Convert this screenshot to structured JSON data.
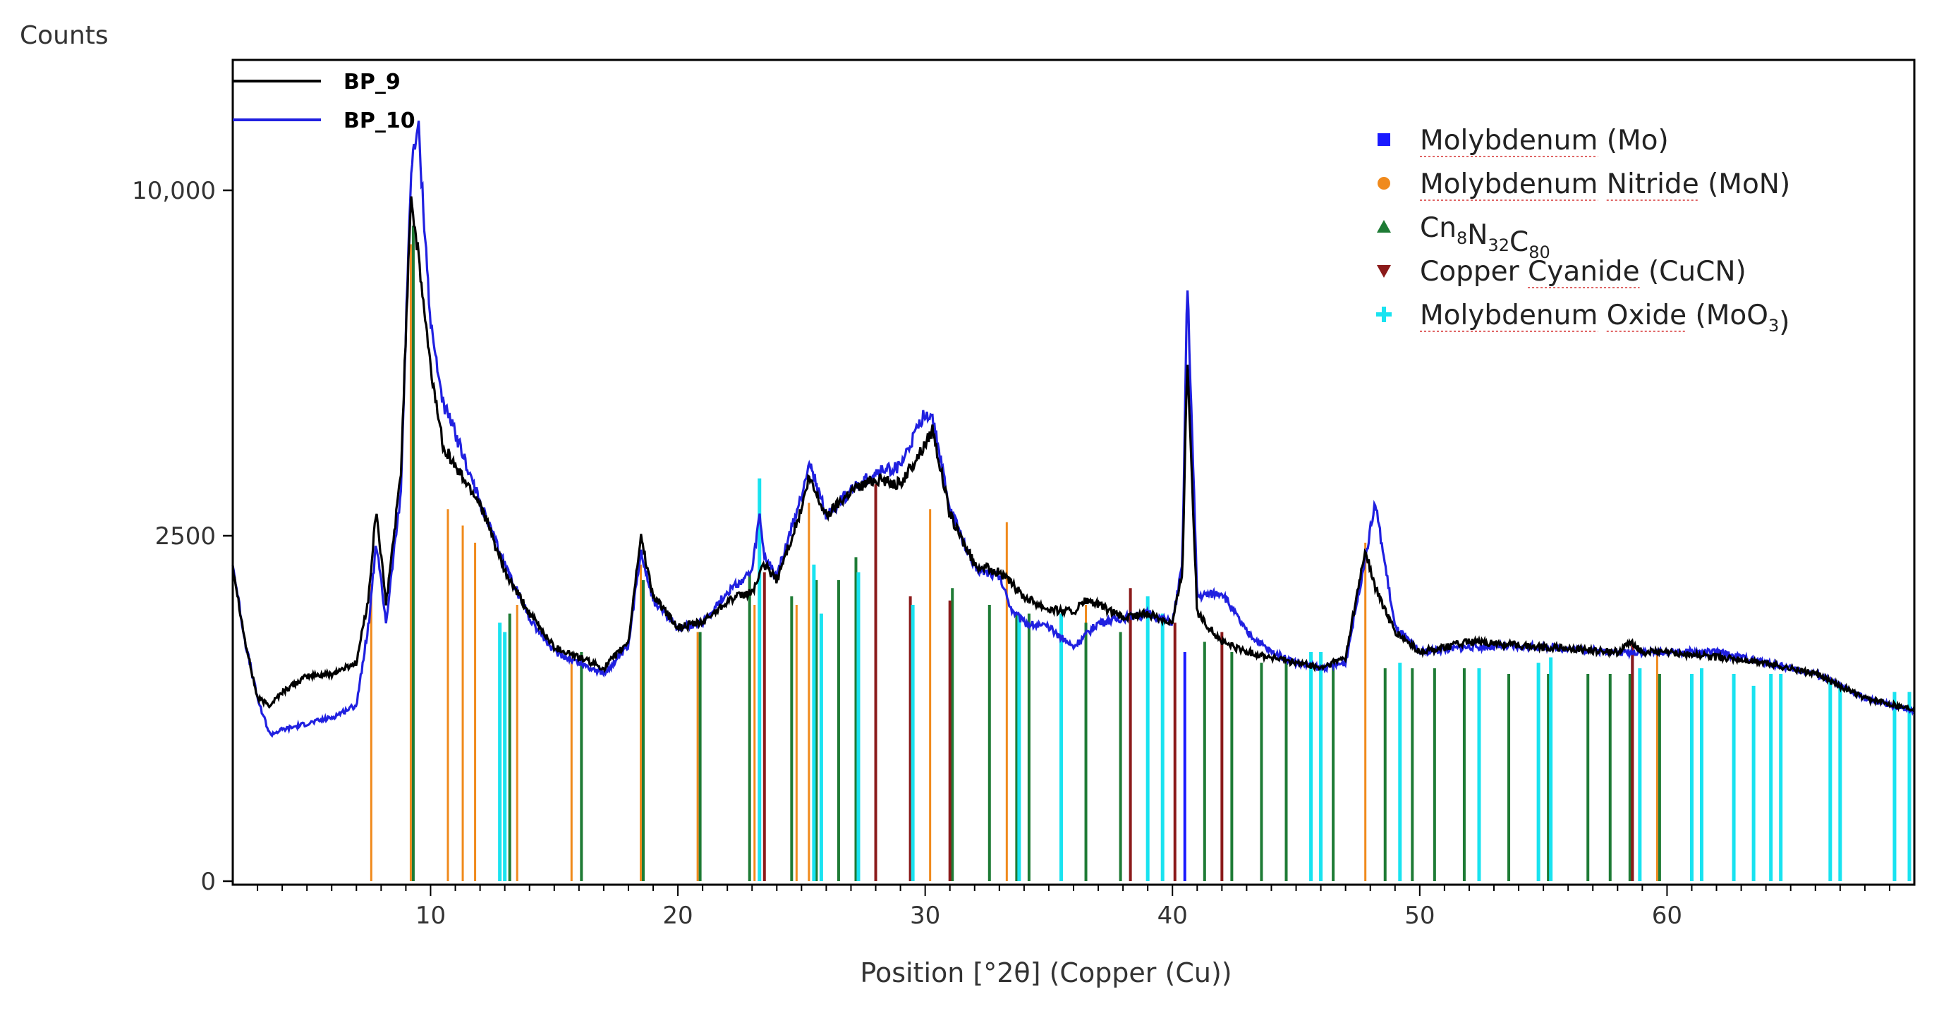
{
  "chart_data": {
    "type": "line",
    "y_axis_title": "Counts",
    "x_axis_title": "Position [°2θ] (Copper (Cu))",
    "xlim": [
      2,
      70
    ],
    "y_scale": "sqrt",
    "y_ticks": [
      {
        "value": 0,
        "label": "0"
      },
      {
        "value": 2500,
        "label": "2500"
      },
      {
        "value": 10000,
        "label": "10,000"
      }
    ],
    "x_ticks": [
      10,
      20,
      30,
      40,
      50,
      60
    ],
    "series": [
      {
        "name": "BP_9",
        "color": "#000000",
        "x": [
          2,
          2.5,
          3,
          3.5,
          4,
          5,
          6,
          7,
          7.5,
          7.8,
          8.2,
          8.8,
          9.2,
          9.5,
          10,
          10.5,
          11,
          12,
          13,
          14,
          15,
          16,
          17,
          18,
          18.5,
          19,
          20,
          21,
          22,
          23,
          23.5,
          24,
          25,
          25.3,
          26,
          27,
          28,
          29,
          30,
          30.3,
          31,
          32,
          33,
          34,
          35,
          36,
          36.5,
          37,
          38,
          39,
          40,
          40.4,
          40.6,
          41,
          42,
          43,
          44,
          45,
          46,
          47,
          47.8,
          48.2,
          49,
          50,
          52,
          55,
          58,
          58.6,
          59,
          60,
          62,
          64,
          66,
          68,
          70
        ],
        "y": [
          2100,
          1200,
          700,
          650,
          750,
          880,
          900,
          1000,
          1700,
          2900,
          1600,
          3500,
          9900,
          8200,
          5500,
          4000,
          3600,
          3000,
          2000,
          1500,
          1150,
          1050,
          950,
          1200,
          2500,
          1700,
          1350,
          1400,
          1650,
          1750,
          2100,
          1900,
          2900,
          3400,
          2800,
          3200,
          3400,
          3300,
          4000,
          4300,
          2800,
          2100,
          2000,
          1700,
          1550,
          1520,
          1650,
          1600,
          1450,
          1500,
          1400,
          2000,
          5800,
          1500,
          1200,
          1100,
          1050,
          1000,
          950,
          1050,
          2300,
          1800,
          1300,
          1100,
          1200,
          1150,
          1100,
          1200,
          1100,
          1100,
          1050,
          1000,
          900,
          700,
          620
        ]
      },
      {
        "name": "BP_10",
        "color": "#2020e0",
        "x": [
          2,
          2.5,
          3,
          3.5,
          4,
          5,
          6,
          7,
          7.5,
          7.8,
          8.2,
          8.8,
          9.2,
          9.5,
          10,
          10.5,
          11,
          12,
          13,
          14,
          15,
          16,
          17,
          18,
          18.5,
          19,
          20,
          21,
          22,
          23,
          23.3,
          23.5,
          24,
          25,
          25.3,
          26,
          27,
          28,
          29,
          30,
          30.3,
          31,
          32,
          33,
          33.5,
          34,
          35,
          36,
          37,
          38,
          39,
          40,
          40.4,
          40.6,
          41,
          42,
          43,
          44,
          45,
          46,
          47,
          47.8,
          48.2,
          49,
          50,
          52,
          55,
          58,
          60,
          62,
          64,
          66,
          68,
          70
        ],
        "y": [
          2100,
          1200,
          700,
          450,
          480,
          520,
          560,
          650,
          1400,
          2400,
          1400,
          3200,
          10500,
          12000,
          6500,
          4800,
          4200,
          3000,
          2100,
          1450,
          1100,
          1000,
          900,
          1150,
          2300,
          1650,
          1350,
          1400,
          1750,
          2000,
          2800,
          2200,
          1950,
          3100,
          3700,
          2800,
          3200,
          3500,
          3600,
          4600,
          4500,
          2900,
          2050,
          1950,
          1550,
          1400,
          1350,
          1150,
          1400,
          1450,
          1500,
          1400,
          2100,
          7600,
          1700,
          1750,
          1300,
          1100,
          1000,
          950,
          1000,
          2200,
          3000,
          1350,
          1100,
          1150,
          1150,
          1100,
          1100,
          1100,
          1000,
          900,
          700,
          600
        ]
      }
    ],
    "reference_phases": [
      {
        "name": "Molybdenum (Mo)",
        "marker": "square",
        "color": "#1a1aff",
        "peaks": [
          {
            "x": 40.5,
            "y": 1100
          },
          {
            "x": 58.6,
            "y": 1150
          }
        ]
      },
      {
        "name": "Molybdenum Nitride (MoN)",
        "marker": "circle",
        "color": "#f08a1c",
        "peaks": [
          {
            "x": 7.6,
            "y": 1850
          },
          {
            "x": 9.2,
            "y": 8500
          },
          {
            "x": 10.7,
            "y": 2900
          },
          {
            "x": 11.3,
            "y": 2650
          },
          {
            "x": 11.8,
            "y": 2400
          },
          {
            "x": 13.5,
            "y": 1600
          },
          {
            "x": 15.7,
            "y": 1050
          },
          {
            "x": 18.5,
            "y": 2100
          },
          {
            "x": 20.8,
            "y": 1300
          },
          {
            "x": 23.1,
            "y": 1600
          },
          {
            "x": 24.8,
            "y": 1600
          },
          {
            "x": 25.3,
            "y": 3000
          },
          {
            "x": 26.5,
            "y": 1600
          },
          {
            "x": 30.2,
            "y": 2900
          },
          {
            "x": 33.3,
            "y": 2700
          },
          {
            "x": 36.5,
            "y": 1600
          },
          {
            "x": 47.8,
            "y": 2400
          },
          {
            "x": 59.6,
            "y": 1100
          }
        ]
      },
      {
        "name": "Cn8N32C80",
        "marker": "triangle-up",
        "color": "#1e7b35",
        "peaks": [
          {
            "x": 9.3,
            "y": 9000
          },
          {
            "x": 13.2,
            "y": 1500
          },
          {
            "x": 16.1,
            "y": 1100
          },
          {
            "x": 18.6,
            "y": 1900
          },
          {
            "x": 20.9,
            "y": 1300
          },
          {
            "x": 22.9,
            "y": 2000
          },
          {
            "x": 24.6,
            "y": 1700
          },
          {
            "x": 25.6,
            "y": 1900
          },
          {
            "x": 26.5,
            "y": 1900
          },
          {
            "x": 27.2,
            "y": 2200
          },
          {
            "x": 31.1,
            "y": 1800
          },
          {
            "x": 32.6,
            "y": 1600
          },
          {
            "x": 33.7,
            "y": 1500
          },
          {
            "x": 34.2,
            "y": 1500
          },
          {
            "x": 36.5,
            "y": 1400
          },
          {
            "x": 37.9,
            "y": 1300
          },
          {
            "x": 41.3,
            "y": 1200
          },
          {
            "x": 42.4,
            "y": 1100
          },
          {
            "x": 43.6,
            "y": 1000
          },
          {
            "x": 44.6,
            "y": 1000
          },
          {
            "x": 46.5,
            "y": 1000
          },
          {
            "x": 48.6,
            "y": 950
          },
          {
            "x": 49.7,
            "y": 950
          },
          {
            "x": 50.6,
            "y": 950
          },
          {
            "x": 51.8,
            "y": 950
          },
          {
            "x": 53.6,
            "y": 900
          },
          {
            "x": 55.2,
            "y": 900
          },
          {
            "x": 56.8,
            "y": 900
          },
          {
            "x": 57.7,
            "y": 900
          },
          {
            "x": 58.5,
            "y": 900
          },
          {
            "x": 59.7,
            "y": 900
          }
        ]
      },
      {
        "name": "Copper Cyanide (CuCN)",
        "marker": "triangle-down",
        "color": "#8b1a1a",
        "peaks": [
          {
            "x": 23.5,
            "y": 2000
          },
          {
            "x": 28.0,
            "y": 3300
          },
          {
            "x": 29.4,
            "y": 1700
          },
          {
            "x": 31.0,
            "y": 1650
          },
          {
            "x": 38.3,
            "y": 1800
          },
          {
            "x": 40.1,
            "y": 1400
          },
          {
            "x": 42.0,
            "y": 1300
          },
          {
            "x": 58.6,
            "y": 1200
          }
        ]
      },
      {
        "name": "Molybdenum Oxide (MoO3)",
        "marker": "plus",
        "color": "#19e3f0",
        "peaks": [
          {
            "x": 12.8,
            "y": 1400
          },
          {
            "x": 13.0,
            "y": 1300
          },
          {
            "x": 23.3,
            "y": 3400
          },
          {
            "x": 25.5,
            "y": 2100
          },
          {
            "x": 25.8,
            "y": 1500
          },
          {
            "x": 27.3,
            "y": 2000
          },
          {
            "x": 29.5,
            "y": 1600
          },
          {
            "x": 33.8,
            "y": 1500
          },
          {
            "x": 35.5,
            "y": 1500
          },
          {
            "x": 39.0,
            "y": 1700
          },
          {
            "x": 39.6,
            "y": 1500
          },
          {
            "x": 45.6,
            "y": 1100
          },
          {
            "x": 46.0,
            "y": 1100
          },
          {
            "x": 49.2,
            "y": 1000
          },
          {
            "x": 52.4,
            "y": 950
          },
          {
            "x": 54.8,
            "y": 1000
          },
          {
            "x": 55.3,
            "y": 1050
          },
          {
            "x": 58.9,
            "y": 950
          },
          {
            "x": 61.0,
            "y": 900
          },
          {
            "x": 61.4,
            "y": 950
          },
          {
            "x": 62.7,
            "y": 900
          },
          {
            "x": 63.5,
            "y": 800
          },
          {
            "x": 64.2,
            "y": 900
          },
          {
            "x": 64.6,
            "y": 900
          },
          {
            "x": 66.6,
            "y": 850
          },
          {
            "x": 67.0,
            "y": 800
          },
          {
            "x": 69.2,
            "y": 750
          },
          {
            "x": 69.8,
            "y": 750
          }
        ]
      }
    ]
  },
  "legend": [
    {
      "label": "Molybdenum (Mo)",
      "parts": [
        {
          "t": "Molybdenum",
          "ul": true
        },
        {
          "t": " (Mo)"
        }
      ]
    },
    {
      "label": "Molybdenum Nitride (MoN)",
      "parts": [
        {
          "t": "Molybdenum",
          "ul": true
        },
        {
          "t": " "
        },
        {
          "t": "Nitride",
          "ul": true
        },
        {
          "t": " (MoN)"
        }
      ]
    },
    {
      "label": "Cn8N32C80",
      "parts": [
        {
          "t": "Cn"
        },
        {
          "t": "8",
          "sub": true
        },
        {
          "t": "N"
        },
        {
          "t": "32",
          "sub": true
        },
        {
          "t": "C"
        },
        {
          "t": "80",
          "sub": true
        }
      ]
    },
    {
      "label": "Copper Cyanide (CuCN)",
      "parts": [
        {
          "t": "Copper"
        },
        {
          "t": " "
        },
        {
          "t": "Cyanide",
          "ul": true
        },
        {
          "t": " (CuCN)"
        }
      ]
    },
    {
      "label": "Molybdenum Oxide (MoO3)",
      "parts": [
        {
          "t": "Molybdenum",
          "ul": true
        },
        {
          "t": " "
        },
        {
          "t": "Oxide",
          "ul": true
        },
        {
          "t": " (MoO"
        },
        {
          "t": "3",
          "sub": true
        },
        {
          "t": ")"
        }
      ]
    }
  ]
}
